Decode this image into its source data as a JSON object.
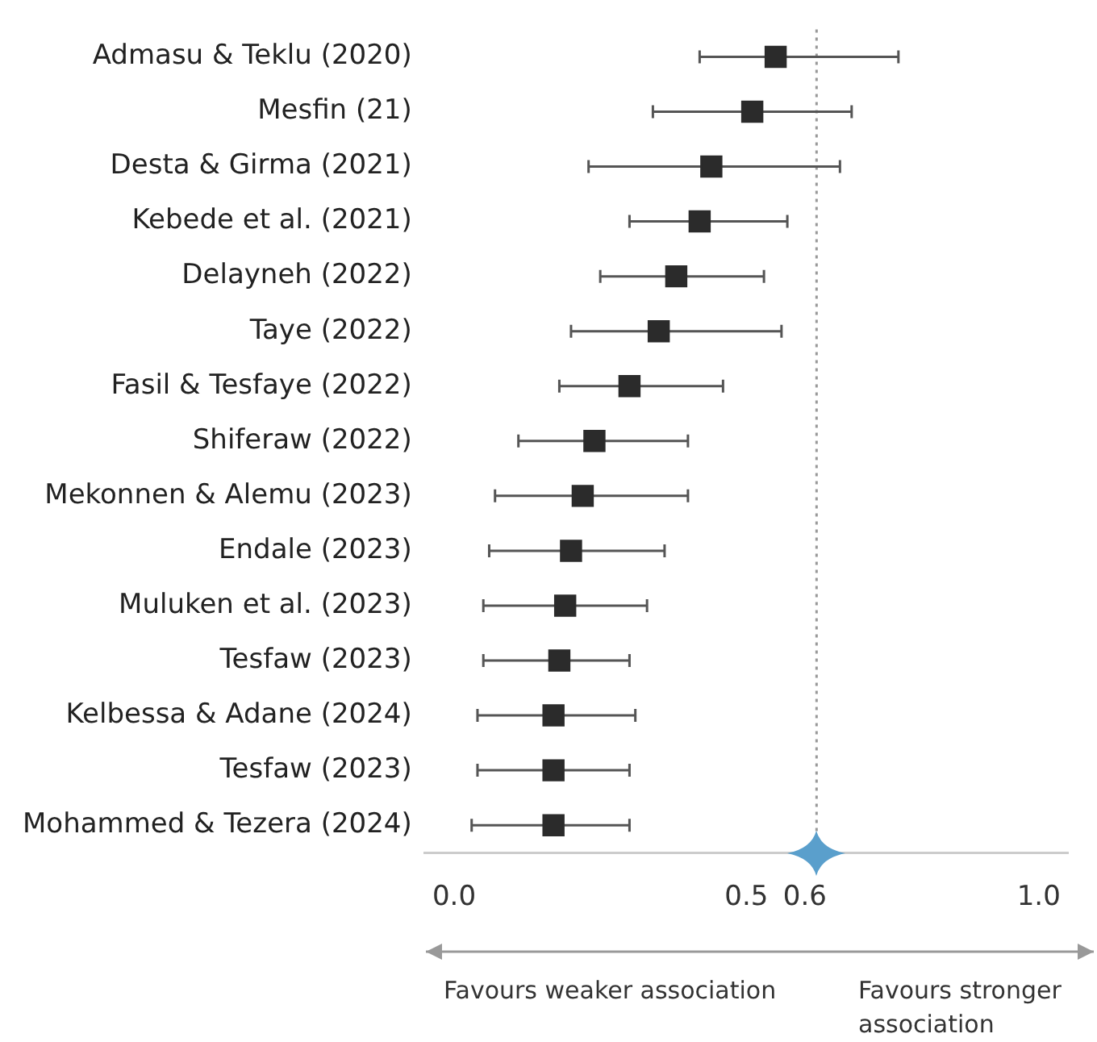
{
  "chart_data": {
    "type": "scatter",
    "orientation": "horizontal",
    "marker": "square",
    "color": "#2b2b2b",
    "categories": [
      "Admasu & Teklu (2020)",
      "Mesfin (21)",
      "Desta & Girma (2021)",
      "Kebede et al. (2021)",
      "Delayneh (2022)",
      "Taye (2022)",
      "Fasil & Tesfaye (2022)",
      "Shiferaw (2022)",
      "Mekonnen & Alemu (2023)",
      "Endale (2023)",
      "Muluken et al. (2023)",
      "Tesfaw (2023)",
      "Kelbessa & Adane (2024)",
      "Tesfaw (2023)",
      "Mohammed & Tezera (2024)"
    ],
    "values": [
      0.55,
      0.51,
      0.44,
      0.42,
      0.38,
      0.35,
      0.3,
      0.24,
      0.22,
      0.2,
      0.19,
      0.18,
      0.17,
      0.17,
      0.17
    ],
    "errors": [
      [
        0.42,
        0.76
      ],
      [
        0.34,
        0.68
      ],
      [
        0.23,
        0.66
      ],
      [
        0.3,
        0.57
      ],
      [
        0.25,
        0.53
      ],
      [
        0.2,
        0.56
      ],
      [
        0.18,
        0.46
      ],
      [
        0.11,
        0.4
      ],
      [
        0.07,
        0.4
      ],
      [
        0.06,
        0.36
      ],
      [
        0.05,
        0.33
      ],
      [
        0.05,
        0.3
      ],
      [
        0.04,
        0.31
      ],
      [
        0.04,
        0.3
      ],
      [
        0.03,
        0.3
      ]
    ],
    "xlim": [
      -0.05,
      1.05
    ],
    "xticks": [
      {
        "value": 0,
        "label": "0.0"
      },
      0.5,
      0.6,
      {
        "value": 1,
        "label": "1.0"
      }
    ],
    "ref_lines": [
      {
        "axis": "x",
        "value": 0.62,
        "line_style": "dotted",
        "color": "#999999"
      }
    ],
    "grid": false,
    "legend": false,
    "annotations": [
      "Favours weaker association",
      "Favours stronger association"
    ]
  }
}
